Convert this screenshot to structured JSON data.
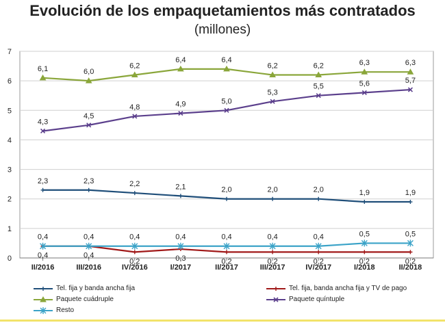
{
  "chart_data": {
    "type": "line",
    "title": "Evolución de los empaquetamientos más contratados",
    "subtitle": "(millones)",
    "categories": [
      "II/2016",
      "III/2016",
      "IV/2016",
      "I/2017",
      "II/2017",
      "III/2017",
      "IV/2017",
      "I/2018",
      "II/2018"
    ],
    "ylim": [
      0,
      7
    ],
    "yticks": [
      0,
      1,
      2,
      3,
      4,
      5,
      6,
      7
    ],
    "grid": true,
    "legend_position": "bottom",
    "series": [
      {
        "name": "Tel. fija y banda ancha fija",
        "color": "#1f4e79",
        "marker": "plus",
        "values": [
          2.3,
          2.3,
          2.2,
          2.1,
          2.0,
          2.0,
          2.0,
          1.9,
          1.9
        ],
        "labels": [
          "2,3",
          "2,3",
          "2,2",
          "2,1",
          "2,0",
          "2,0",
          "2,0",
          "1,9",
          "1,9"
        ]
      },
      {
        "name": "Tel. fija, banda ancha fija y TV de pago",
        "color": "#a01818",
        "marker": "plus",
        "values": [
          0.4,
          0.4,
          0.2,
          0.3,
          0.2,
          0.2,
          0.2,
          0.2,
          0.2
        ],
        "labels": [
          "0,4",
          "0,4",
          "0,2",
          "0,3",
          "0,2",
          "0,2",
          "0,2",
          "0,2",
          "0,2"
        ]
      },
      {
        "name": "Paquete cuádruple",
        "color": "#8aa63a",
        "marker": "triangle",
        "values": [
          6.1,
          6.0,
          6.2,
          6.4,
          6.4,
          6.2,
          6.2,
          6.3,
          6.3
        ],
        "labels": [
          "6,1",
          "6,0",
          "6,2",
          "6,4",
          "6,4",
          "6,2",
          "6,2",
          "6,3",
          "6,3"
        ]
      },
      {
        "name": "Paquete quíntuple",
        "color": "#5b3f8c",
        "marker": "x",
        "values": [
          4.3,
          4.5,
          4.8,
          4.9,
          5.0,
          5.3,
          5.5,
          5.6,
          5.7
        ],
        "labels": [
          "4,3",
          "4,5",
          "4,8",
          "4,9",
          "5,0",
          "5,3",
          "5,5",
          "5,6",
          "5,7"
        ]
      },
      {
        "name": "Resto",
        "color": "#3ba3c8",
        "marker": "asterisk",
        "values": [
          0.4,
          0.4,
          0.4,
          0.4,
          0.4,
          0.4,
          0.4,
          0.5,
          0.5
        ],
        "labels": [
          "0,4",
          "0,4",
          "0,4",
          "0,4",
          "0,4",
          "0,4",
          "0,4",
          "0,5",
          "0,5"
        ]
      }
    ]
  }
}
